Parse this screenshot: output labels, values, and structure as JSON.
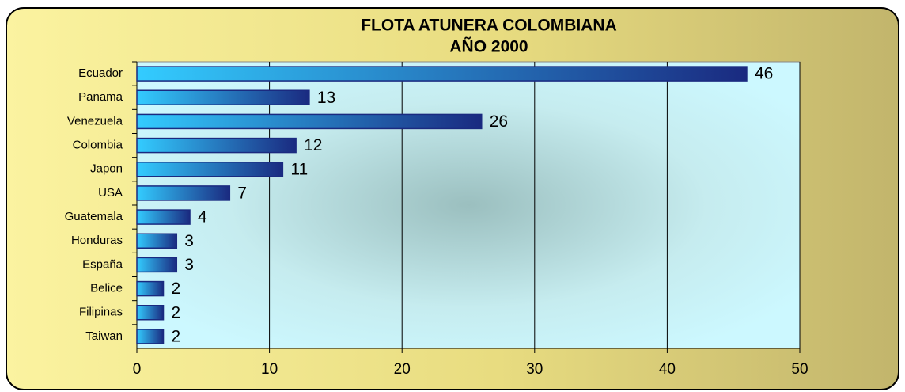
{
  "chart_data": {
    "type": "bar",
    "orientation": "horizontal",
    "title": "FLOTA ATUNERA COLOMBIANA",
    "subtitle": "AÑO 2000",
    "categories": [
      "Ecuador",
      "Panama",
      "Venezuela",
      "Colombia",
      "Japon",
      "USA",
      "Guatemala",
      "Honduras",
      "España",
      "Belice",
      "Filipinas",
      "Taiwan"
    ],
    "values": [
      46,
      13,
      26,
      12,
      11,
      7,
      4,
      3,
      3,
      2,
      2,
      2
    ],
    "color": "#1a2a80",
    "xlim": [
      0,
      50
    ],
    "xticks": [
      0,
      10,
      20,
      30,
      40,
      50
    ],
    "grid": true
  }
}
